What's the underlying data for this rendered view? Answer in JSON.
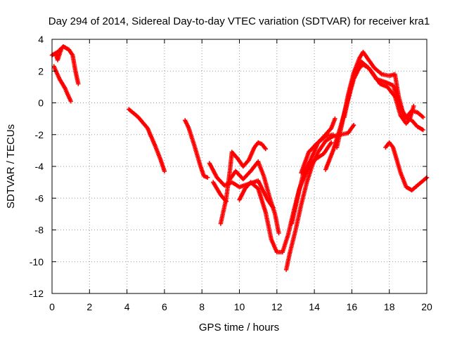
{
  "chart_data": {
    "type": "scatter",
    "title": "Day 294 of 2014, Sidereal Day-to-day VTEC variation (SDTVAR) for receiver kra1",
    "xlabel": "GPS time / hours",
    "ylabel": "SDTVAR / TECUs",
    "xlim": [
      0,
      20
    ],
    "ylim": [
      -12,
      4
    ],
    "x_ticks": [
      0,
      2,
      4,
      6,
      8,
      10,
      12,
      14,
      16,
      18,
      20
    ],
    "y_ticks": [
      -12,
      -10,
      -8,
      -6,
      -4,
      -2,
      0,
      2,
      4
    ],
    "x_tick_labels": [
      "0",
      "2",
      "4",
      "6",
      "8",
      "10",
      "12",
      "14",
      "16",
      "18",
      "20"
    ],
    "y_tick_labels": [
      "-12",
      "-10",
      "-8",
      "-6",
      "-4",
      "-2",
      "0",
      "2",
      "4"
    ],
    "grid": true,
    "marker": "+",
    "color": "#ff0000",
    "arcs": [
      [
        [
          0.0,
          3.0
        ],
        [
          0.3,
          3.2
        ],
        [
          0.6,
          3.55
        ],
        [
          0.9,
          3.35
        ],
        [
          1.1,
          3.0
        ],
        [
          1.25,
          2.0
        ],
        [
          1.4,
          1.2
        ]
      ],
      [
        [
          0.1,
          2.3
        ],
        [
          0.4,
          1.5
        ],
        [
          0.7,
          0.9
        ],
        [
          1.0,
          0.1
        ]
      ],
      [
        [
          0.2,
          3.1
        ],
        [
          0.3,
          2.7
        ],
        [
          0.5,
          3.4
        ]
      ],
      [
        [
          4.1,
          -0.4
        ],
        [
          4.6,
          -0.9
        ],
        [
          5.1,
          -1.6
        ],
        [
          5.5,
          -2.7
        ],
        [
          5.8,
          -3.6
        ],
        [
          6.0,
          -4.3
        ]
      ],
      [
        [
          7.1,
          -1.1
        ],
        [
          7.3,
          -1.6
        ],
        [
          7.6,
          -2.7
        ],
        [
          7.9,
          -3.9
        ],
        [
          8.1,
          -4.6
        ],
        [
          8.3,
          -4.7
        ]
      ],
      [
        [
          8.4,
          -3.8
        ],
        [
          8.8,
          -4.7
        ],
        [
          9.2,
          -5.2
        ],
        [
          9.6,
          -5.0
        ],
        [
          10.0,
          -5.3
        ],
        [
          10.5,
          -5.1
        ],
        [
          11.0,
          -4.9
        ],
        [
          11.5,
          -6.1
        ],
        [
          11.8,
          -6.6
        ]
      ],
      [
        [
          8.6,
          -5.0
        ],
        [
          9.0,
          -5.8
        ],
        [
          9.3,
          -6.2
        ]
      ],
      [
        [
          9.0,
          -7.6
        ],
        [
          9.3,
          -6.0
        ],
        [
          9.5,
          -4.2
        ],
        [
          9.6,
          -3.1
        ],
        [
          9.9,
          -3.5
        ],
        [
          10.2,
          -4.0
        ],
        [
          10.5,
          -3.6
        ],
        [
          10.8,
          -2.8
        ],
        [
          11.0,
          -2.5
        ],
        [
          11.2,
          -2.6
        ],
        [
          11.4,
          -2.9
        ]
      ],
      [
        [
          9.5,
          -4.8
        ],
        [
          9.8,
          -4.3
        ],
        [
          10.2,
          -4.8
        ],
        [
          10.6,
          -4.3
        ],
        [
          11.0,
          -3.7
        ],
        [
          11.3,
          -4.6
        ],
        [
          11.6,
          -5.9
        ],
        [
          11.9,
          -7.0
        ],
        [
          12.1,
          -8.2
        ]
      ],
      [
        [
          10.0,
          -6.1
        ],
        [
          10.3,
          -5.4
        ],
        [
          10.6,
          -5.0
        ],
        [
          11.0,
          -5.4
        ],
        [
          11.4,
          -6.9
        ],
        [
          11.7,
          -8.6
        ],
        [
          12.0,
          -9.4
        ],
        [
          12.3,
          -9.4
        ],
        [
          12.6,
          -8.3
        ],
        [
          12.9,
          -6.8
        ],
        [
          13.2,
          -5.4
        ],
        [
          13.6,
          -4.3
        ],
        [
          14.0,
          -3.6
        ],
        [
          14.5,
          -3.2
        ],
        [
          14.9,
          -2.5
        ]
      ],
      [
        [
          12.5,
          -10.5
        ],
        [
          12.7,
          -9.4
        ],
        [
          13.0,
          -8.0
        ],
        [
          13.3,
          -6.4
        ],
        [
          13.6,
          -5.0
        ],
        [
          13.9,
          -3.9
        ],
        [
          14.2,
          -3.1
        ],
        [
          14.6,
          -2.4
        ],
        [
          15.0,
          -2.1
        ],
        [
          15.4,
          -2.0
        ],
        [
          15.8,
          -1.9
        ],
        [
          16.1,
          -1.4
        ]
      ],
      [
        [
          12.8,
          -7.6
        ],
        [
          13.1,
          -6.0
        ],
        [
          13.4,
          -4.5
        ],
        [
          13.8,
          -3.6
        ],
        [
          14.2,
          -2.5
        ],
        [
          14.6,
          -2.0
        ],
        [
          14.9,
          -1.6
        ],
        [
          15.1,
          -1.0
        ]
      ],
      [
        [
          13.3,
          -4.4
        ],
        [
          13.7,
          -3.1
        ],
        [
          14.1,
          -2.6
        ],
        [
          14.6,
          -2.1
        ],
        [
          15.0,
          -2.0
        ]
      ],
      [
        [
          14.6,
          -4.2
        ],
        [
          15.0,
          -3.0
        ],
        [
          15.4,
          -1.5
        ],
        [
          15.8,
          0.2
        ],
        [
          16.1,
          1.5
        ],
        [
          16.4,
          2.2
        ],
        [
          16.6,
          2.4
        ],
        [
          16.9,
          2.2
        ],
        [
          17.3,
          1.5
        ],
        [
          17.8,
          1.3
        ],
        [
          18.2,
          1.1
        ],
        [
          18.5,
          0.1
        ],
        [
          18.8,
          -0.9
        ],
        [
          19.2,
          -1.1
        ],
        [
          19.5,
          -1.5
        ],
        [
          19.8,
          -1.7
        ]
      ],
      [
        [
          15.2,
          -2.8
        ],
        [
          15.5,
          -1.2
        ],
        [
          15.8,
          0.5
        ],
        [
          16.1,
          1.9
        ],
        [
          16.4,
          2.8
        ],
        [
          16.6,
          3.2
        ],
        [
          16.9,
          2.7
        ],
        [
          17.2,
          2.2
        ],
        [
          17.6,
          1.8
        ],
        [
          18.0,
          1.7
        ],
        [
          18.3,
          1.8
        ],
        [
          18.5,
          0.4
        ],
        [
          18.7,
          -0.5
        ],
        [
          18.9,
          -0.9
        ],
        [
          19.2,
          -0.5
        ],
        [
          19.5,
          -0.6
        ],
        [
          19.8,
          -0.9
        ]
      ],
      [
        [
          15.6,
          -0.9
        ],
        [
          15.9,
          0.8
        ],
        [
          16.2,
          2.1
        ],
        [
          16.5,
          2.6
        ],
        [
          16.8,
          2.3
        ],
        [
          17.1,
          1.9
        ],
        [
          17.5,
          1.2
        ],
        [
          17.9,
          1.0
        ],
        [
          18.3,
          0.4
        ],
        [
          18.6,
          -0.8
        ],
        [
          18.9,
          -1.3
        ],
        [
          19.1,
          -1.0
        ],
        [
          19.3,
          -0.2
        ]
      ],
      [
        [
          17.8,
          -2.8
        ],
        [
          18.0,
          -2.5
        ],
        [
          18.2,
          -2.8
        ],
        [
          18.4,
          -3.6
        ],
        [
          18.6,
          -4.4
        ],
        [
          18.9,
          -5.3
        ],
        [
          19.2,
          -5.5
        ],
        [
          19.5,
          -5.2
        ],
        [
          19.8,
          -4.9
        ],
        [
          20.0,
          -4.7
        ]
      ]
    ]
  }
}
